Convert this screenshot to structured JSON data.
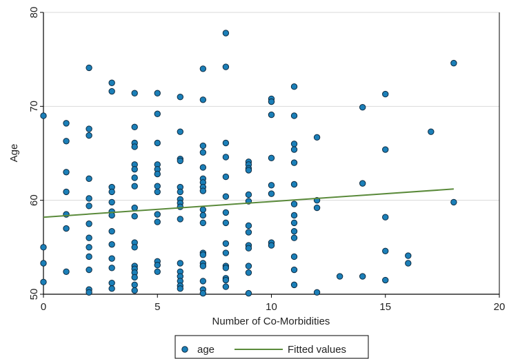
{
  "chart_data": {
    "type": "scatter",
    "xlabel": "Number of Co-Morbidities",
    "ylabel": "Age",
    "xlim": [
      0,
      20
    ],
    "ylim": [
      50,
      80
    ],
    "x_ticks": [
      0,
      5,
      10,
      15,
      20
    ],
    "y_ticks": [
      50,
      60,
      70,
      80
    ],
    "grid": "horizontal",
    "legend_placement": "bottom",
    "colors": {
      "points": "#1b7fb8",
      "point_edge": "#0d2a40",
      "fitted": "#5a8a3a",
      "grid": "#d9d9d9"
    },
    "series": [
      {
        "name": "age",
        "type": "scatter",
        "points": [
          [
            0,
            69
          ],
          [
            0,
            55
          ],
          [
            0,
            53.3
          ],
          [
            0,
            51.3
          ],
          [
            1,
            68.2
          ],
          [
            1,
            66.3
          ],
          [
            1,
            63
          ],
          [
            1,
            60.9
          ],
          [
            1,
            58.5
          ],
          [
            1,
            57
          ],
          [
            1,
            52.4
          ],
          [
            2,
            74.1
          ],
          [
            2,
            67.6
          ],
          [
            2,
            66.9
          ],
          [
            2,
            62.3
          ],
          [
            2,
            60.2
          ],
          [
            2,
            59.4
          ],
          [
            2,
            57.5
          ],
          [
            2,
            56
          ],
          [
            2,
            55
          ],
          [
            2,
            54
          ],
          [
            2,
            52.6
          ],
          [
            2,
            50.5
          ],
          [
            2,
            50.2
          ],
          [
            3,
            72.5
          ],
          [
            3,
            71.6
          ],
          [
            3,
            61.4
          ],
          [
            3,
            60.9
          ],
          [
            3,
            59.8
          ],
          [
            3,
            58.8
          ],
          [
            3,
            58.4
          ],
          [
            3,
            56.7
          ],
          [
            3,
            55.3
          ],
          [
            3,
            53.8
          ],
          [
            3,
            52.8
          ],
          [
            3,
            51.2
          ],
          [
            3,
            50.6
          ],
          [
            4,
            71.4
          ],
          [
            4,
            67.8
          ],
          [
            4,
            66.1
          ],
          [
            4,
            65.7
          ],
          [
            4,
            63.8
          ],
          [
            4,
            63.3
          ],
          [
            4,
            62.4
          ],
          [
            4,
            61.5
          ],
          [
            4,
            59.2
          ],
          [
            4,
            58.3
          ],
          [
            4,
            55.5
          ],
          [
            4,
            55
          ],
          [
            4,
            53
          ],
          [
            4,
            52.7
          ],
          [
            4,
            52.3
          ],
          [
            4,
            51.8
          ],
          [
            4,
            51
          ],
          [
            4,
            50.4
          ],
          [
            5,
            71.4
          ],
          [
            5,
            69.2
          ],
          [
            5,
            66.1
          ],
          [
            5,
            63.8
          ],
          [
            5,
            63.3
          ],
          [
            5,
            62.8
          ],
          [
            5,
            61.5
          ],
          [
            5,
            60.9
          ],
          [
            5,
            58.5
          ],
          [
            5,
            57.7
          ],
          [
            5,
            53.5
          ],
          [
            5,
            53.1
          ],
          [
            5,
            52.4
          ],
          [
            6,
            71
          ],
          [
            6,
            67.3
          ],
          [
            6,
            64.4
          ],
          [
            6,
            64.2
          ],
          [
            6,
            61.4
          ],
          [
            6,
            60.9
          ],
          [
            6,
            60.1
          ],
          [
            6,
            59.7
          ],
          [
            6,
            59.3
          ],
          [
            6,
            58
          ],
          [
            6,
            53.3
          ],
          [
            6,
            52.4
          ],
          [
            6,
            51.9
          ],
          [
            6,
            51.4
          ],
          [
            6,
            50.9
          ],
          [
            6,
            50.6
          ],
          [
            7,
            74
          ],
          [
            7,
            70.7
          ],
          [
            7,
            65.8
          ],
          [
            7,
            65.1
          ],
          [
            7,
            63.5
          ],
          [
            7,
            62.3
          ],
          [
            7,
            61.9
          ],
          [
            7,
            61.4
          ],
          [
            7,
            61
          ],
          [
            7,
            59
          ],
          [
            7,
            58.4
          ],
          [
            7,
            57.6
          ],
          [
            7,
            54.4
          ],
          [
            7,
            54.2
          ],
          [
            7,
            53.3
          ],
          [
            7,
            53
          ],
          [
            7,
            51.4
          ],
          [
            7,
            50.5
          ],
          [
            7,
            50.1
          ],
          [
            8,
            77.8
          ],
          [
            8,
            74.2
          ],
          [
            8,
            66.1
          ],
          [
            8,
            64.6
          ],
          [
            8,
            62.5
          ],
          [
            8,
            60.4
          ],
          [
            8,
            58.7
          ],
          [
            8,
            57.6
          ],
          [
            8,
            55.4
          ],
          [
            8,
            54.4
          ],
          [
            8,
            53
          ],
          [
            8,
            52.8
          ],
          [
            8,
            51.7
          ],
          [
            8,
            51.5
          ],
          [
            8,
            50.8
          ],
          [
            9,
            64.1
          ],
          [
            9,
            63.8
          ],
          [
            9,
            63.4
          ],
          [
            9,
            63.2
          ],
          [
            9,
            60.6
          ],
          [
            9,
            59.9
          ],
          [
            9,
            57.3
          ],
          [
            9,
            56.6
          ],
          [
            9,
            55.2
          ],
          [
            9,
            54.9
          ],
          [
            9,
            53
          ],
          [
            9,
            52.3
          ],
          [
            9,
            50.1
          ],
          [
            10,
            70.8
          ],
          [
            10,
            70.5
          ],
          [
            10,
            69.1
          ],
          [
            10,
            64.5
          ],
          [
            10,
            61.6
          ],
          [
            10,
            60.7
          ],
          [
            10,
            55.5
          ],
          [
            10,
            55.2
          ],
          [
            11,
            72.1
          ],
          [
            11,
            69
          ],
          [
            11,
            66
          ],
          [
            11,
            65.4
          ],
          [
            11,
            64
          ],
          [
            11,
            61.7
          ],
          [
            11,
            59.6
          ],
          [
            11,
            58.4
          ],
          [
            11,
            57.6
          ],
          [
            11,
            56.7
          ],
          [
            11,
            56
          ],
          [
            11,
            54
          ],
          [
            11,
            52.6
          ],
          [
            11,
            51
          ],
          [
            12,
            66.7
          ],
          [
            12,
            60
          ],
          [
            12,
            59.2
          ],
          [
            12,
            50.2
          ],
          [
            13,
            51.9
          ],
          [
            14,
            69.9
          ],
          [
            14,
            61.8
          ],
          [
            14,
            51.9
          ],
          [
            15,
            71.3
          ],
          [
            15,
            65.4
          ],
          [
            15,
            58.2
          ],
          [
            15,
            54.6
          ],
          [
            15,
            51.5
          ],
          [
            16,
            54.1
          ],
          [
            16,
            53.3
          ],
          [
            17,
            67.3
          ],
          [
            18,
            74.6
          ],
          [
            18,
            59.8
          ]
        ]
      },
      {
        "name": "Fitted values",
        "type": "line",
        "points": [
          [
            0,
            58.2
          ],
          [
            18,
            61.2
          ]
        ]
      }
    ]
  }
}
